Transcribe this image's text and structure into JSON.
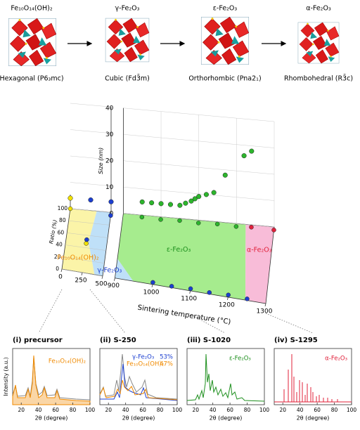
{
  "phases": [
    {
      "formula": "Fe₁₀O₁₄(OH)₂",
      "caption": "Hexagonal (P6₃mc)"
    },
    {
      "formula": "γ-Fe₂O₃",
      "caption": "Cubic (Fd3̄m)"
    },
    {
      "formula": "ε-Fe₂O₃",
      "caption": "Orthorhombic (Pna2₁)"
    },
    {
      "formula": "α-Fe₂O₃",
      "caption": "Rhombohedral (R3̄c)"
    }
  ],
  "chart_data": {
    "type": "scatter3d",
    "xlabel": "Sintering temperature (°C)",
    "ratio_label": "Ratio (%)",
    "size_label": "Size (nm)",
    "xlim": [
      0,
      1300
    ],
    "xticks": [
      0,
      250,
      500,
      900,
      1000,
      1100,
      1200,
      1300
    ],
    "ratio_lim": [
      0,
      100
    ],
    "ratio_ticks": [
      0,
      20,
      40,
      60,
      80,
      100
    ],
    "size_lim": [
      0,
      40
    ],
    "size_ticks": [
      0,
      10,
      20,
      30,
      40
    ],
    "regions": [
      {
        "label": "Fe₁₀O₁₄(OH)₂",
        "color": "#f08a00"
      },
      {
        "label": "γ-Fe₂O₃",
        "color": "#1c3fd0"
      },
      {
        "label": "ε-Fe₂O₃",
        "color": "#1d8f1d"
      },
      {
        "label": "α-Fe₂O₃",
        "color": "#e0203a"
      }
    ],
    "size_series": [
      {
        "color": "#f2e200",
        "x": [
          0
        ],
        "values": [
          4
        ]
      },
      {
        "color": "#1c3fd0",
        "x": [
          250,
          500
        ],
        "values": [
          4,
          4
        ]
      },
      {
        "color": "#2cb52c",
        "x": [
          950,
          975,
          1000,
          1025,
          1050,
          1065,
          1080,
          1090,
          1100,
          1120,
          1140,
          1170,
          1220,
          1240
        ],
        "values": [
          5,
          5,
          5,
          5,
          5,
          6,
          7,
          8,
          9,
          10,
          11,
          18,
          26,
          28
        ]
      }
    ],
    "ratio_series": [
      {
        "color": "#f2e200",
        "x": [
          0,
          250
        ],
        "values": [
          100,
          47
        ]
      },
      {
        "color": "#1c3fd0",
        "x": [
          250,
          500,
          1000,
          1050,
          1100,
          1150,
          1200,
          1250
        ],
        "values": [
          53,
          95,
          3,
          2,
          3,
          2,
          3,
          2
        ]
      },
      {
        "color": "#2cb52c",
        "x": [
          950,
          1000,
          1050,
          1100,
          1150,
          1200
        ],
        "values": [
          97,
          96,
          97,
          96,
          97,
          96
        ]
      },
      {
        "color": "#e0203a",
        "x": [
          1240,
          1300
        ],
        "values": [
          97,
          96
        ]
      }
    ]
  },
  "xrd": {
    "ylabel": "Intensity (a.u.)",
    "xlabel": "2θ (degree)",
    "xlim": [
      10,
      100
    ],
    "xticks": [
      20,
      40,
      60,
      80,
      100
    ],
    "panels": [
      {
        "title": "(i) precursor",
        "labels": [
          {
            "text": "Fe₁₀O₁₄(OH)₂",
            "color": "#f08a00"
          }
        ]
      },
      {
        "title": "(ii) S-250",
        "labels": [
          {
            "text": "γ-Fe₂O₃",
            "color": "#1c3fd0"
          },
          {
            "text": "53%",
            "color": "#1c3fd0"
          },
          {
            "text": "Fe₁₀O₁₄(OH)₂",
            "color": "#f08a00"
          },
          {
            "text": "47%",
            "color": "#f08a00"
          }
        ]
      },
      {
        "title": "(iii) S-1020",
        "labels": [
          {
            "text": "ε-Fe₂O₃",
            "color": "#1d8f1d"
          }
        ]
      },
      {
        "title": "(iv) S-1295",
        "labels": [
          {
            "text": "α-Fe₂O₃",
            "color": "#e0203a"
          }
        ]
      }
    ]
  }
}
